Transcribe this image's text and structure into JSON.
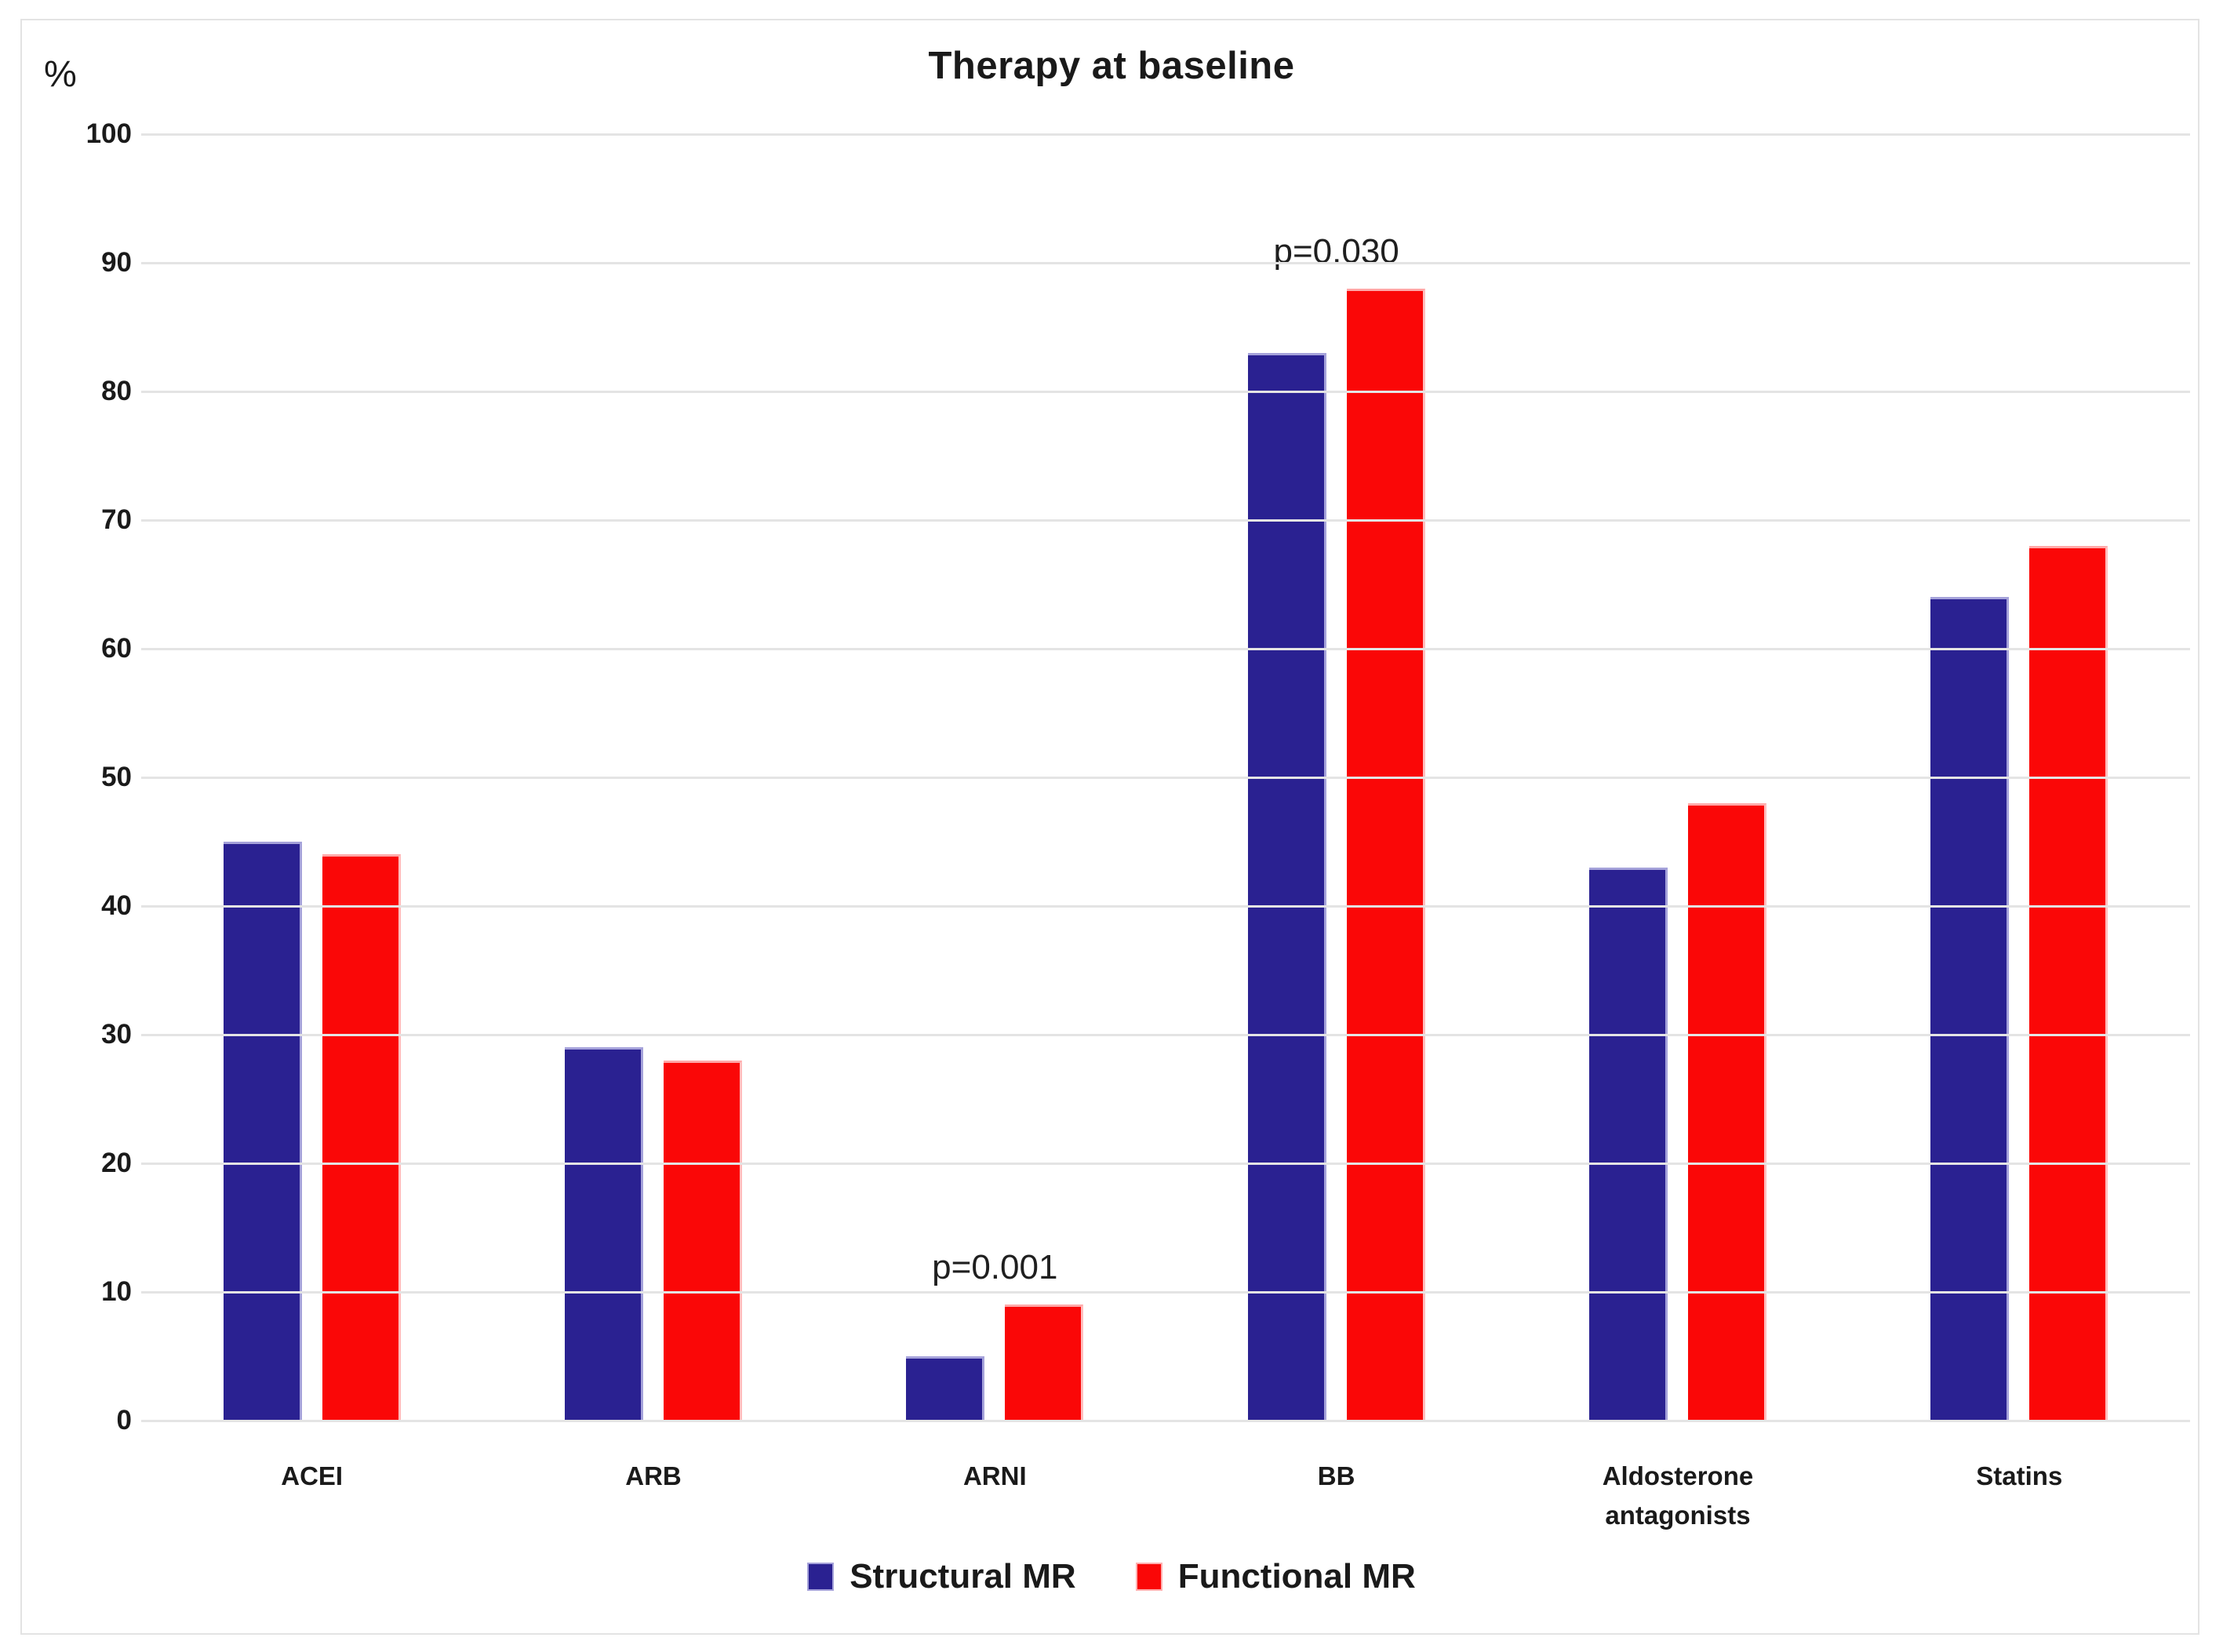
{
  "title": "Therapy at baseline",
  "y_axis": {
    "unit_label": "%",
    "ticks": [
      100,
      90,
      80,
      70,
      60,
      50,
      40,
      30,
      20,
      10,
      0
    ],
    "min": 0,
    "max": 100
  },
  "chart_data": {
    "type": "bar",
    "title": "Therapy at baseline",
    "xlabel": "",
    "ylabel": "%",
    "ylim": [
      0,
      100
    ],
    "grid": true,
    "legend_position": "bottom",
    "categories": [
      "ACEI",
      "ARB",
      "ARNI",
      "BB",
      "Aldosterone antagonists",
      "Statins"
    ],
    "series": [
      {
        "name": "Structural MR",
        "color": "#2a2191",
        "values": [
          45,
          29,
          5,
          83,
          43,
          64
        ]
      },
      {
        "name": "Functional MR",
        "color": "#fa0707",
        "values": [
          44,
          28,
          9,
          88,
          48,
          68
        ]
      }
    ],
    "annotations": [
      {
        "category": "ARNI",
        "text": "p=0.001"
      },
      {
        "category": "BB",
        "text": "p=0.030"
      }
    ]
  },
  "legend": {
    "items": [
      {
        "label": "Structural MR",
        "color": "#2a2191"
      },
      {
        "label": "Functional MR",
        "color": "#fa0707"
      }
    ]
  },
  "colors": {
    "structural": "#2a2191",
    "functional": "#fa0707",
    "gridline": "#e4e4e4",
    "frame": "#e3e3e3",
    "text": "#1a1a1a"
  }
}
